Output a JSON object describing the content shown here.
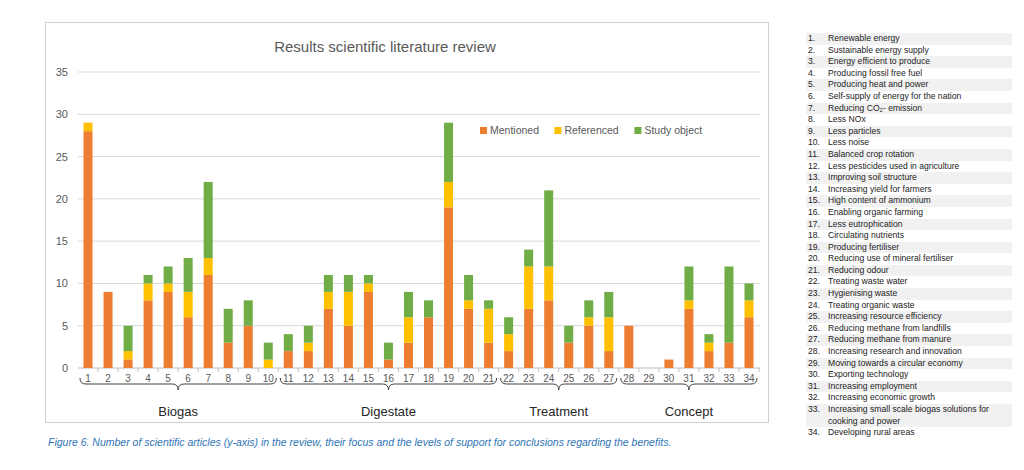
{
  "chart_data": {
    "type": "bar",
    "stacked": true,
    "title": "Results scientific literature review",
    "categories": [
      "1",
      "2",
      "3",
      "4",
      "5",
      "6",
      "7",
      "8",
      "9",
      "10",
      "11",
      "12",
      "13",
      "14",
      "15",
      "16",
      "17",
      "18",
      "19",
      "20",
      "21",
      "22",
      "23",
      "24",
      "25",
      "26",
      "27",
      "28",
      "29",
      "30",
      "31",
      "32",
      "33",
      "34"
    ],
    "series": [
      {
        "name": "Mentioned",
        "color": "#ed7d31",
        "values": [
          28,
          9,
          1,
          8,
          9,
          6,
          11,
          3,
          5,
          0,
          2,
          2,
          7,
          5,
          9,
          1,
          3,
          6,
          19,
          7,
          3,
          2,
          7,
          8,
          3,
          5,
          2,
          5,
          0,
          1,
          7,
          2,
          3,
          6
        ]
      },
      {
        "name": "Referenced",
        "color": "#ffc000",
        "values": [
          1,
          0,
          1,
          2,
          1,
          3,
          2,
          0,
          0,
          1,
          0,
          1,
          2,
          4,
          1,
          0,
          3,
          0,
          3,
          1,
          4,
          2,
          5,
          4,
          0,
          1,
          4,
          0,
          0,
          0,
          1,
          1,
          0,
          2
        ]
      },
      {
        "name": "Study object",
        "color": "#70ad47",
        "values": [
          0,
          0,
          3,
          1,
          2,
          4,
          9,
          4,
          3,
          2,
          2,
          2,
          2,
          2,
          1,
          2,
          3,
          2,
          7,
          3,
          1,
          2,
          2,
          9,
          2,
          2,
          3,
          0,
          0,
          0,
          4,
          1,
          9,
          2
        ]
      }
    ],
    "groups": [
      {
        "label": "Biogas",
        "count": 10
      },
      {
        "label": "Digestate",
        "count": 11
      },
      {
        "label": "Treatment",
        "count": 6
      },
      {
        "label": "Concept",
        "count": 7
      }
    ],
    "ylim": [
      0,
      35
    ],
    "yticks": [
      0,
      5,
      10,
      15,
      20,
      25,
      30,
      35
    ],
    "grid": true,
    "legend": "top-right"
  },
  "caption": "Figure 6. Number of scientific articles (y-axis) in the review, their focus and the levels of support for conclusions regarding the benefits.",
  "category_list": [
    {
      "number": "1.",
      "text": "Renewable energy"
    },
    {
      "number": "2.",
      "text": "Sustainable energy supply"
    },
    {
      "number": "3.",
      "text": "Energy efficient to produce"
    },
    {
      "number": "4.",
      "text": "Producing fossil free fuel"
    },
    {
      "number": "5.",
      "text": "Producing heat and power"
    },
    {
      "number": "6.",
      "text": "Self-supply of energy for the nation"
    },
    {
      "number": "7.",
      "text": "Reducing CO₂- emission"
    },
    {
      "number": "8.",
      "text": "Less NOx"
    },
    {
      "number": "9.",
      "text": "Less particles"
    },
    {
      "number": "10.",
      "text": "Less noise"
    },
    {
      "number": "11.",
      "text": "Balanced crop rotation"
    },
    {
      "number": "12.",
      "text": "Less pesticides used in agriculture"
    },
    {
      "number": "13.",
      "text": "Improving soil structure"
    },
    {
      "number": "14.",
      "text": "Increasing yield for farmers"
    },
    {
      "number": "15.",
      "text": "High content of ammonium"
    },
    {
      "number": "16.",
      "text": "Enabling organic farming"
    },
    {
      "number": "17.",
      "text": "Less eutrophication"
    },
    {
      "number": "18.",
      "text": "Circulating nutrients"
    },
    {
      "number": "19.",
      "text": "Producing fertiliser"
    },
    {
      "number": "20.",
      "text": "Reducing use of mineral fertiliser"
    },
    {
      "number": "21.",
      "text": "Reducing odour"
    },
    {
      "number": "22.",
      "text": "Treating waste water"
    },
    {
      "number": "23.",
      "text": "Hygienising waste"
    },
    {
      "number": "24.",
      "text": "Treating organic waste"
    },
    {
      "number": "25.",
      "text": "Increasing resource efficiency"
    },
    {
      "number": "26.",
      "text": "Reducing methane from landfills"
    },
    {
      "number": "27.",
      "text": "Reducing methane from manure"
    },
    {
      "number": "28.",
      "text": "Increasing research and innovation"
    },
    {
      "number": "29.",
      "text": "Moving towards a circular economy"
    },
    {
      "number": "30.",
      "text": "Exporting technology"
    },
    {
      "number": "31.",
      "text": "Increasing employment"
    },
    {
      "number": "32.",
      "text": "Increasing economic growth"
    },
    {
      "number": "33.",
      "text": "Increasing small scale biogas solutions for cooking and power"
    },
    {
      "number": "34.",
      "text": "Developing rural areas"
    }
  ]
}
